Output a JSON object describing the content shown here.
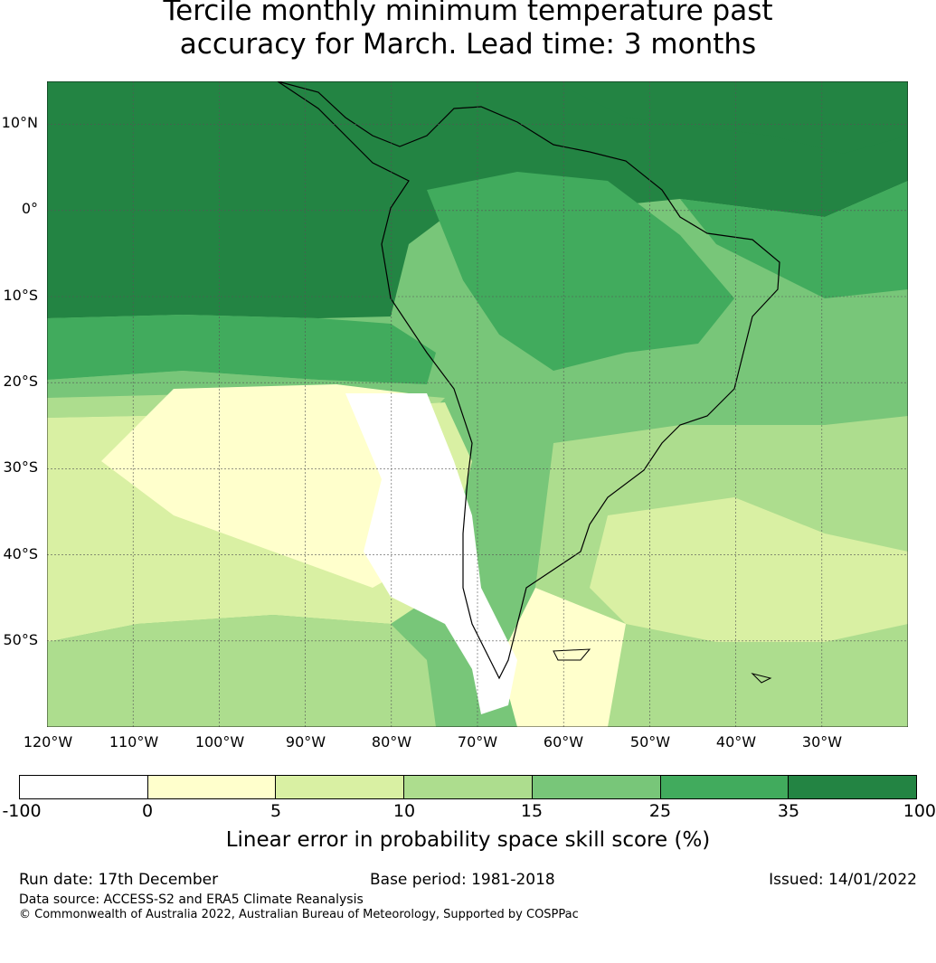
{
  "title_line1": "Tercile monthly minimum temperature past",
  "title_line2": "accuracy for March. Lead time: 3 months",
  "map": {
    "lat_labels": [
      "10°N",
      "0°",
      "10°S",
      "20°S",
      "30°S",
      "40°S",
      "50°S"
    ],
    "lon_labels": [
      "120°W",
      "110°W",
      "100°W",
      "90°W",
      "80°W",
      "70°W",
      "60°W",
      "50°W",
      "40°W",
      "30°W"
    ],
    "lon_range": [
      -120,
      -20
    ],
    "lat_range": [
      -60,
      15
    ],
    "projection": "plate carree",
    "gridlines": true
  },
  "colorbar": {
    "ticks": [
      "-100",
      "0",
      "5",
      "10",
      "15",
      "25",
      "35",
      "100"
    ],
    "colors": [
      "#ffffff",
      "#ffffcc",
      "#d9f0a3",
      "#addd8e",
      "#78c679",
      "#41ab5d",
      "#238443"
    ],
    "label": "Linear error in probability space skill score (%)"
  },
  "footer": {
    "run_date": "Run date: 17th December",
    "base_period": "Base period: 1981-2018",
    "issued": "Issued: 14/01/2022",
    "data_source": "Data source: ACCESS-S2 and ERA5 Climate Reanalysis",
    "copyright": "© Commonwealth of Australia 2022, Australian Bureau of Meteorology, Supported by COSPPac"
  }
}
